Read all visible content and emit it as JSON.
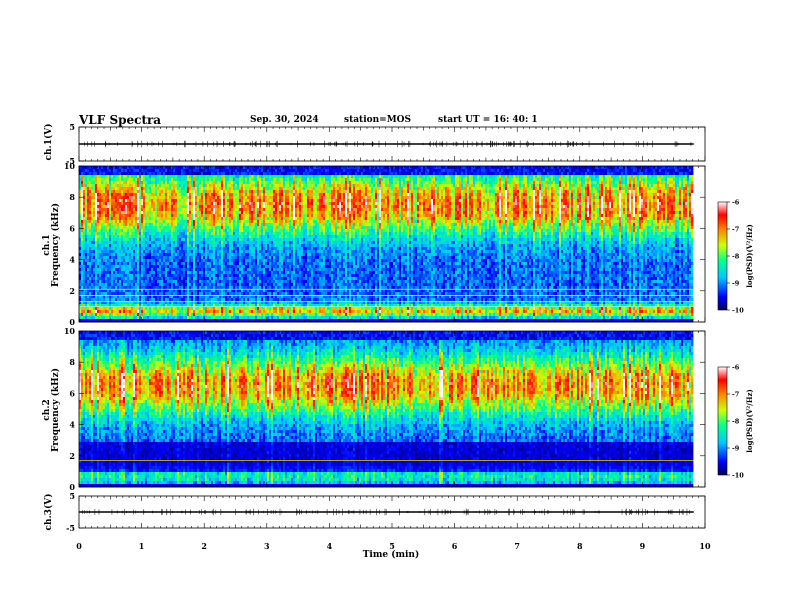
{
  "header": {
    "title": "VLF Spectra",
    "date": "Sep. 30, 2024",
    "station": "station=MOS",
    "start": "start  UT =   16: 40: 1"
  },
  "chart_data": [
    {
      "type": "line",
      "panel": "ch1-waveform",
      "ylabel": "ch.1(V)",
      "ylim": [
        -5,
        5
      ],
      "y_ticks": [
        "5",
        "-5"
      ],
      "xlim": [
        0,
        10
      ],
      "series": [
        {
          "x": [
            0,
            9.82
          ],
          "y": [
            0,
            0
          ]
        }
      ]
    },
    {
      "type": "heatmap",
      "panel": "ch1-spectrogram",
      "ylabel": "ch.1\nFrequency (kHz)",
      "ylim": [
        0,
        10
      ],
      "y_ticks": [
        "0",
        "2",
        "4",
        "6",
        "8",
        "10"
      ],
      "xlim": [
        0,
        10
      ],
      "data_extent_x": [
        0,
        9.82
      ],
      "band_center_khz": 7.5,
      "interference_lines_khz": [
        1.0,
        1.3,
        1.7,
        2.1
      ]
    },
    {
      "type": "heatmap",
      "panel": "ch2-spectrogram",
      "ylabel": "ch.2\nFrequency (kHz)",
      "ylim": [
        0,
        10
      ],
      "y_ticks": [
        "0",
        "2",
        "4",
        "6",
        "8",
        "10"
      ],
      "xlim": [
        0,
        10
      ],
      "data_extent_x": [
        0,
        9.82
      ],
      "band_center_khz": 6.5,
      "interference_lines_khz": [
        1.7
      ]
    },
    {
      "type": "line",
      "panel": "ch3-waveform",
      "ylabel": "ch.3(V)",
      "ylim": [
        -5,
        5
      ],
      "y_ticks": [
        "5",
        "-5"
      ],
      "xlim": [
        0,
        10
      ],
      "xlabel": "Time  (min)",
      "x_ticks": [
        "0",
        "1",
        "2",
        "3",
        "4",
        "5",
        "6",
        "7",
        "8",
        "9",
        "10"
      ],
      "series": [
        {
          "x": [
            0,
            9.82
          ],
          "y": [
            0,
            0
          ]
        }
      ]
    }
  ],
  "colorbar": {
    "label": "log(PSD)(V²/Hz)",
    "ticks": [
      "-6",
      "-7",
      "-8",
      "-9",
      "-10"
    ],
    "range": [
      -10,
      -6
    ],
    "colors": [
      "#000060",
      "#0000ff",
      "#00c8ff",
      "#00ff90",
      "#d0ff00",
      "#ff8000",
      "#ff0000",
      "#ffffff"
    ]
  }
}
